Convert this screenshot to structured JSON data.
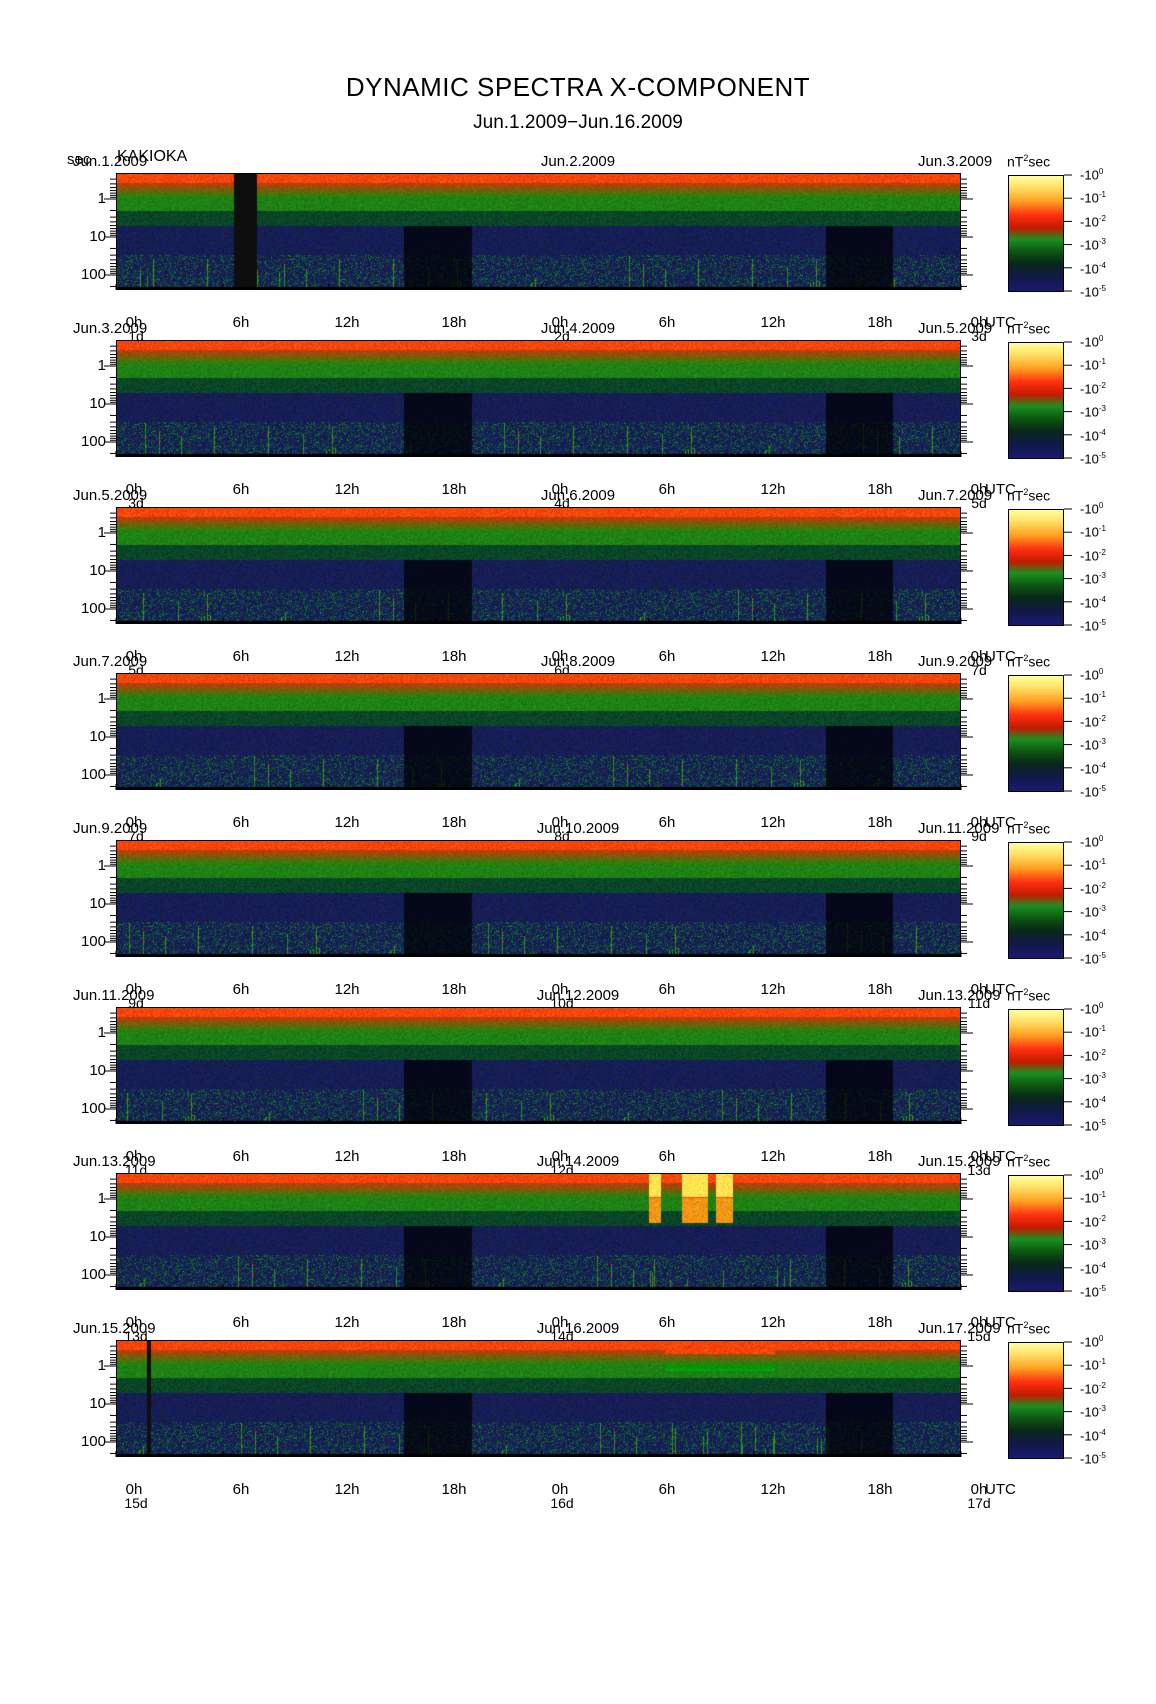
{
  "title": "DYNAMIC SPECTRA X-COMPONENT",
  "subtitle": "Jun.1.2009−Jun.16.2009",
  "y_unit": "sec",
  "station": "KAKIOKA",
  "chart_data": {
    "type": "heatmap",
    "y_axis": {
      "scale": "log",
      "ticks": [
        "1",
        "10",
        "100"
      ],
      "unit": "sec"
    },
    "x_axis": {
      "tick_labels": [
        "0h",
        "6h",
        "12h",
        "18h",
        "0h",
        "6h",
        "12h",
        "18h",
        "0h"
      ],
      "unit": "UTC"
    },
    "colorbar": {
      "unit": "nT",
      "unit_power": "2",
      "unit_suffix": "sec",
      "labels": [
        "10",
        "10",
        "10",
        "10",
        "10",
        "10"
      ],
      "exponents": [
        "0",
        "-1",
        "-2",
        "-3",
        "-4",
        "-5"
      ]
    },
    "panels": [
      {
        "date_left": "Jun.1.2009",
        "date_mid": "Jun.2.2009",
        "date_right": "Jun.3.2009",
        "day_left": "1d",
        "day_mid": "2d",
        "day_right": "3d"
      },
      {
        "date_left": "Jun.3.2009",
        "date_mid": "Jun.4.2009",
        "date_right": "Jun.5.2009",
        "day_left": "3d",
        "day_mid": "4d",
        "day_right": "5d"
      },
      {
        "date_left": "Jun.5.2009",
        "date_mid": "Jun.6.2009",
        "date_right": "Jun.7.2009",
        "day_left": "5d",
        "day_mid": "6d",
        "day_right": "7d"
      },
      {
        "date_left": "Jun.7.2009",
        "date_mid": "Jun.8.2009",
        "date_right": "Jun.9.2009",
        "day_left": "7d",
        "day_mid": "8d",
        "day_right": "9d"
      },
      {
        "date_left": "Jun.9.2009",
        "date_mid": "Jun.10.2009",
        "date_right": "Jun.11.2009",
        "day_left": "9d",
        "day_mid": "10d",
        "day_right": "11d"
      },
      {
        "date_left": "Jun.11.2009",
        "date_mid": "Jun.12.2009",
        "date_right": "Jun.13.2009",
        "day_left": "11d",
        "day_mid": "12d",
        "day_right": "13d"
      },
      {
        "date_left": "Jun.13.2009",
        "date_mid": "Jun.14.2009",
        "date_right": "Jun.15.2009",
        "day_left": "13d",
        "day_mid": "14d",
        "day_right": "15d"
      },
      {
        "date_left": "Jun.15.2009",
        "date_mid": "Jun.16.2009",
        "date_right": "Jun.17.2009",
        "day_left": "15d",
        "day_mid": "16d",
        "day_right": "17d"
      }
    ],
    "colors": {
      "high": "#ff2200",
      "mid": "#1a8a1a",
      "low": "#141a60",
      "gap": "#101010",
      "peak": "#ffff88"
    }
  }
}
